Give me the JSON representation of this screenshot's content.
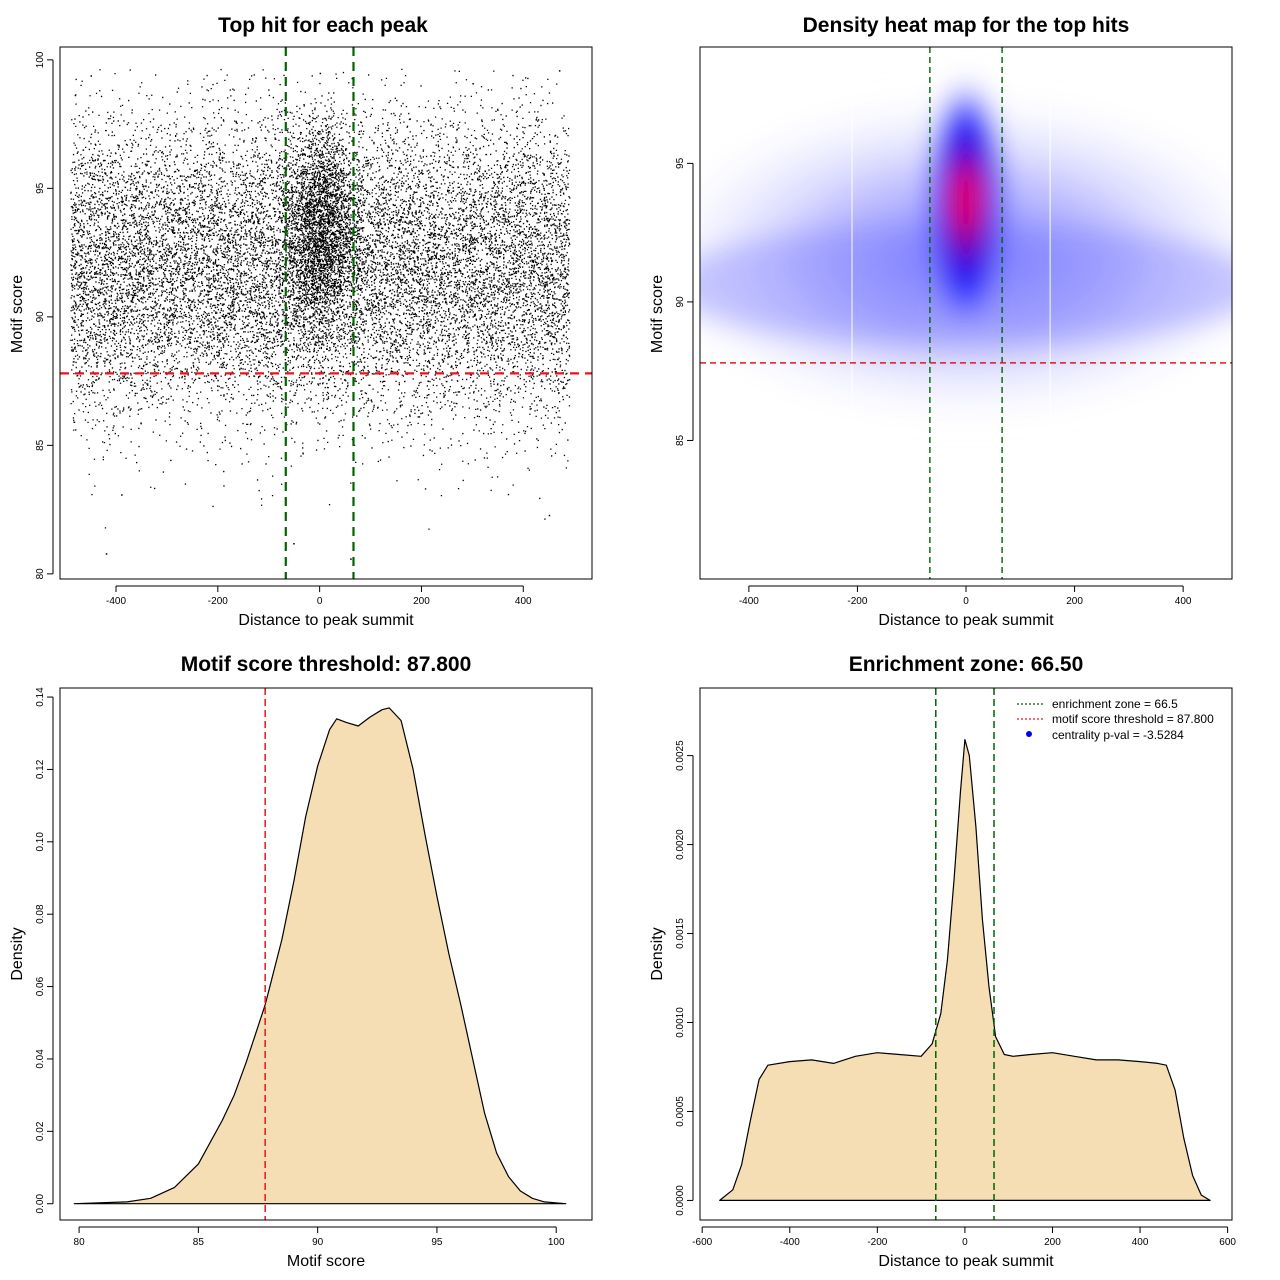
{
  "chart_data": [
    {
      "type": "scatter",
      "title": "Top hit for each peak",
      "xlabel": "Distance to peak summit",
      "ylabel": "Motif score",
      "xlim": [
        -510,
        535
      ],
      "ylim": [
        79.8,
        100.5
      ],
      "xticks": [
        "-400",
        "-200",
        "0",
        "200",
        "400"
      ],
      "yticks": [
        "80",
        "85",
        "90",
        "95",
        "100"
      ],
      "points_x_range": [
        -490,
        490
      ],
      "points_y_range": [
        80.8,
        99.7
      ],
      "sample_points": [
        [
          -420,
          80.8
        ],
        [
          -52,
          81.2
        ],
        [
          60,
          80.6
        ],
        [
          -390,
          83.1
        ],
        [
          450,
          82.3
        ],
        [
          470,
          99.6
        ],
        [
          -450,
          99.4
        ],
        [
          0,
          99.5
        ],
        [
          300,
          99.1
        ]
      ],
      "hlines": [
        {
          "value": 87.8,
          "color": "#e8141c",
          "style": "dashed"
        }
      ],
      "vlines": [
        {
          "value": -66.5,
          "color": "#006400",
          "style": "dashed"
        },
        {
          "value": 66.5,
          "color": "#006400",
          "style": "dashed"
        }
      ]
    },
    {
      "type": "heatmap",
      "title": "Density heat map for the top hits",
      "xlabel": "Distance to peak summit",
      "ylabel": "Motif score",
      "xlim": [
        -490,
        490
      ],
      "ylim": [
        80.0,
        99.2
      ],
      "xticks": [
        "-400",
        "-200",
        "0",
        "200",
        "400"
      ],
      "yticks": [
        "85",
        "90",
        "95"
      ],
      "peak": {
        "x": 0,
        "y": 93.8
      },
      "colors": [
        "#ffffff",
        "#0000ff",
        "#ff0000"
      ],
      "hlines": [
        {
          "value": 87.8,
          "color": "#e8141c",
          "style": "dashed"
        }
      ],
      "vlines": [
        {
          "value": -66.5,
          "color": "#006400",
          "style": "dashed"
        },
        {
          "value": 66.5,
          "color": "#006400",
          "style": "dashed"
        }
      ]
    },
    {
      "type": "area",
      "title": "Motif score threshold: 87.800",
      "xlabel": "Motif score",
      "ylabel": "Density",
      "xlim": [
        79.2,
        101.5
      ],
      "ylim": [
        -0.0045,
        0.1425
      ],
      "xticks": [
        "80",
        "85",
        "90",
        "95",
        "100"
      ],
      "yticks": [
        "0.00",
        "0.02",
        "0.04",
        "0.06",
        "0.08",
        "0.10",
        "0.12",
        "0.14"
      ],
      "x": [
        79.8,
        82,
        83,
        84,
        85,
        85.5,
        86,
        86.5,
        87,
        87.8,
        88.5,
        89,
        89.5,
        90,
        90.5,
        90.8,
        91.2,
        91.7,
        92.2,
        92.7,
        93,
        93.5,
        94,
        94.5,
        95,
        95.5,
        96,
        96.5,
        97,
        97.5,
        98,
        98.5,
        99,
        99.5,
        100.4
      ],
      "y": [
        0,
        0.0005,
        0.0015,
        0.0045,
        0.011,
        0.017,
        0.023,
        0.03,
        0.039,
        0.055,
        0.073,
        0.089,
        0.107,
        0.121,
        0.131,
        0.134,
        0.133,
        0.132,
        0.1345,
        0.1365,
        0.137,
        0.1335,
        0.12,
        0.102,
        0.085,
        0.069,
        0.055,
        0.04,
        0.025,
        0.014,
        0.0075,
        0.0035,
        0.0015,
        0.0005,
        0
      ],
      "fill": "#f5deb3",
      "vlines": [
        {
          "value": 87.8,
          "color": "#e8141c",
          "style": "dashed"
        }
      ]
    },
    {
      "type": "area",
      "title": "Enrichment zone: 66.50",
      "xlabel": "Distance to peak summit",
      "ylabel": "Density",
      "xlim": [
        -605,
        610
      ],
      "ylim": [
        -0.00011,
        0.00288
      ],
      "xticks": [
        "-600",
        "-400",
        "-200",
        "0",
        "200",
        "400",
        "600"
      ],
      "yticks": [
        "0.0000",
        "0.0005",
        "0.0010",
        "0.0015",
        "0.0020",
        "0.0025"
      ],
      "x": [
        -560,
        -530,
        -510,
        -490,
        -470,
        -450,
        -400,
        -350,
        -300,
        -250,
        -200,
        -150,
        -100,
        -75,
        -55,
        -40,
        -25,
        -10,
        0,
        10,
        25,
        40,
        55,
        70,
        90,
        110,
        150,
        200,
        250,
        300,
        350,
        400,
        440,
        460,
        480,
        500,
        520,
        540,
        560
      ],
      "y": [
        0,
        6e-05,
        0.0002,
        0.00045,
        0.00068,
        0.00076,
        0.00078,
        0.00079,
        0.00077,
        0.00081,
        0.00083,
        0.00082,
        0.00081,
        0.00088,
        0.00105,
        0.00135,
        0.0018,
        0.0023,
        0.00259,
        0.0025,
        0.0021,
        0.00158,
        0.0012,
        0.00092,
        0.00082,
        0.00081,
        0.00082,
        0.00083,
        0.00081,
        0.00079,
        0.00079,
        0.00078,
        0.00077,
        0.00076,
        0.00062,
        0.00035,
        0.00014,
        3e-05,
        0
      ],
      "fill": "#f5deb3",
      "vlines": [
        {
          "value": -66.5,
          "color": "#006400",
          "style": "dashed"
        },
        {
          "value": 66.5,
          "color": "#006400",
          "style": "dashed"
        }
      ],
      "legend": {
        "position": "top-right",
        "entries": [
          {
            "label": "enrichment zone = 66.5",
            "color": "#006400",
            "marker": "dotted-line"
          },
          {
            "label": "motif score threshold = 87.800",
            "color": "#e8141c",
            "marker": "dotted-line"
          },
          {
            "label": "centrality p-val = -3.5284",
            "color": "#0000ff",
            "marker": "point"
          }
        ]
      }
    }
  ]
}
